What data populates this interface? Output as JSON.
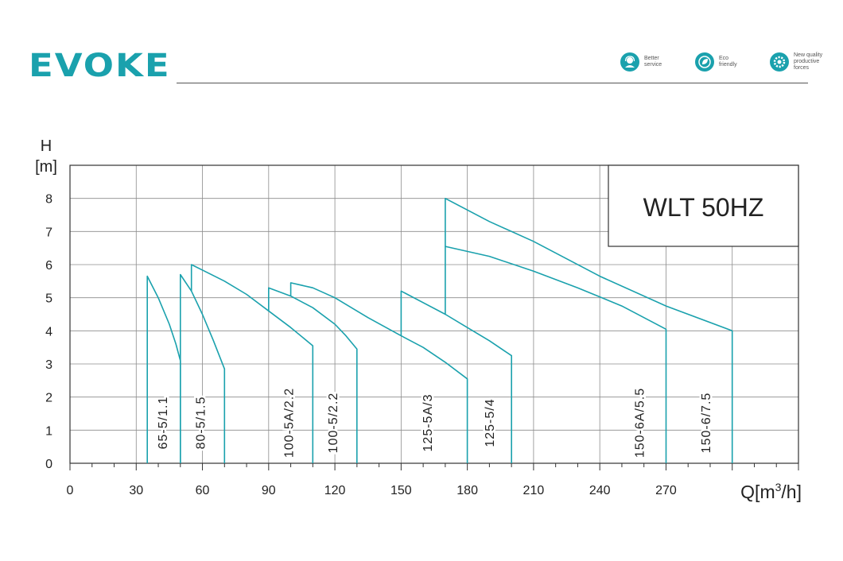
{
  "header": {
    "logo_text": "EVOKE",
    "brand_color": "#1aa1ad",
    "badges": [
      {
        "icon": "headset-icon",
        "lines": [
          "Better",
          "service"
        ]
      },
      {
        "icon": "leaf-icon",
        "lines": [
          "Eco",
          "friendly"
        ]
      },
      {
        "icon": "gear-icon",
        "lines": [
          "New quality",
          "productive",
          "forces"
        ]
      }
    ]
  },
  "chart_data": {
    "type": "line",
    "title_box": "WLT 50HZ",
    "ylabel_line1": "H",
    "ylabel_line2": "[m]",
    "xlabel_main": "Q[m",
    "xlabel_sup": "3",
    "xlabel_tail": "/h]",
    "xlim": [
      0,
      330
    ],
    "ylim": [
      0,
      9
    ],
    "x_ticks": [
      0,
      30,
      60,
      90,
      120,
      150,
      180,
      210,
      240,
      270
    ],
    "y_ticks": [
      0,
      1,
      2,
      3,
      4,
      5,
      6,
      7,
      8
    ],
    "grid": true,
    "line_color": "#1aa1ad",
    "series": [
      {
        "name": "65-5/1.1",
        "label_x": 44,
        "points": [
          [
            35,
            0
          ],
          [
            35,
            5.65
          ],
          [
            40,
            5.0
          ],
          [
            45,
            4.2
          ],
          [
            48,
            3.6
          ],
          [
            50,
            3.1
          ],
          [
            50,
            0
          ]
        ]
      },
      {
        "name": "80-5/1.5",
        "label_x": 61,
        "points": [
          [
            50,
            0
          ],
          [
            50,
            5.7
          ],
          [
            55,
            5.2
          ],
          [
            60,
            4.5
          ],
          [
            65,
            3.7
          ],
          [
            70,
            2.85
          ],
          [
            70,
            0
          ]
        ]
      },
      {
        "name": "100-5A/2.2",
        "label_x": 101,
        "points": [
          [
            55,
            5.2
          ],
          [
            55,
            6.0
          ],
          [
            70,
            5.5
          ],
          [
            80,
            5.1
          ],
          [
            90,
            4.6
          ],
          [
            100,
            4.1
          ],
          [
            110,
            3.55
          ],
          [
            110,
            0
          ]
        ]
      },
      {
        "name": "100-5/2.2",
        "label_x": 121,
        "points": [
          [
            90,
            4.6
          ],
          [
            90,
            5.3
          ],
          [
            100,
            5.05
          ],
          [
            110,
            4.7
          ],
          [
            120,
            4.2
          ],
          [
            125,
            3.85
          ],
          [
            130,
            3.45
          ],
          [
            130,
            0
          ]
        ]
      },
      {
        "name": "125-5A/3",
        "label_x": 164,
        "points": [
          [
            100,
            5.05
          ],
          [
            100,
            5.45
          ],
          [
            110,
            5.3
          ],
          [
            120,
            5.0
          ],
          [
            135,
            4.4
          ],
          [
            150,
            3.85
          ],
          [
            160,
            3.5
          ],
          [
            170,
            3.05
          ],
          [
            180,
            2.55
          ],
          [
            180,
            0
          ]
        ]
      },
      {
        "name": "125-5/4",
        "label_x": 192,
        "points": [
          [
            150,
            3.85
          ],
          [
            150,
            5.2
          ],
          [
            170,
            4.5
          ],
          [
            180,
            4.1
          ],
          [
            190,
            3.7
          ],
          [
            200,
            3.25
          ],
          [
            200,
            0
          ]
        ]
      },
      {
        "name": "150-6A/5.5",
        "label_x": 260,
        "points": [
          [
            170,
            4.5
          ],
          [
            170,
            6.55
          ],
          [
            190,
            6.25
          ],
          [
            210,
            5.8
          ],
          [
            230,
            5.3
          ],
          [
            250,
            4.75
          ],
          [
            270,
            4.05
          ],
          [
            270,
            0
          ]
        ]
      },
      {
        "name": "150-6/7.5",
        "label_x": 290,
        "points": [
          [
            170,
            6.55
          ],
          [
            170,
            8.0
          ],
          [
            190,
            7.3
          ],
          [
            210,
            6.7
          ],
          [
            240,
            5.65
          ],
          [
            270,
            4.75
          ],
          [
            300,
            4.0
          ],
          [
            300,
            0
          ]
        ]
      }
    ]
  }
}
